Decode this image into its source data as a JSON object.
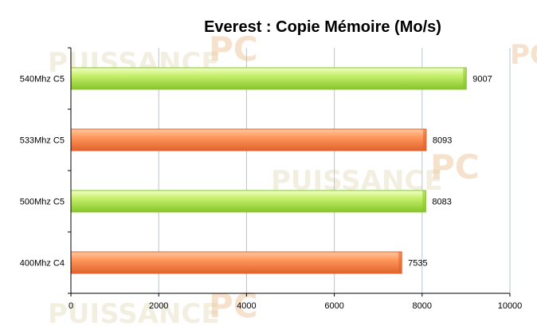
{
  "watermark": {
    "text": "PUISSANCE",
    "suffix": "PC"
  },
  "colors": {
    "green_light": "#dcfa94",
    "green_dark": "#86c42a",
    "orange_light": "#ffab7a",
    "orange_dark": "#e0622c",
    "grid": "#b4c4d4",
    "axis": "#000000"
  },
  "chart_data": {
    "type": "bar",
    "orientation": "horizontal",
    "title": "Everest : Copie Mémoire (Mo/s)",
    "xlabel": "",
    "ylabel": "",
    "categories": [
      "540Mhz C5",
      "533Mhz C5",
      "500Mhz C5",
      "400Mhz C4"
    ],
    "values": [
      9007,
      8093,
      8083,
      7535
    ],
    "bar_colors": [
      "green",
      "orange",
      "green",
      "orange"
    ],
    "data_labels": [
      "9007",
      "8093",
      "8083",
      "7535"
    ],
    "xlim": [
      0,
      10000
    ],
    "xticks": [
      0,
      2000,
      4000,
      6000,
      8000,
      10000
    ],
    "xtick_labels": [
      "0",
      "2000",
      "4000",
      "6000",
      "8000",
      "10000"
    ],
    "grid": true,
    "legend": "none"
  }
}
